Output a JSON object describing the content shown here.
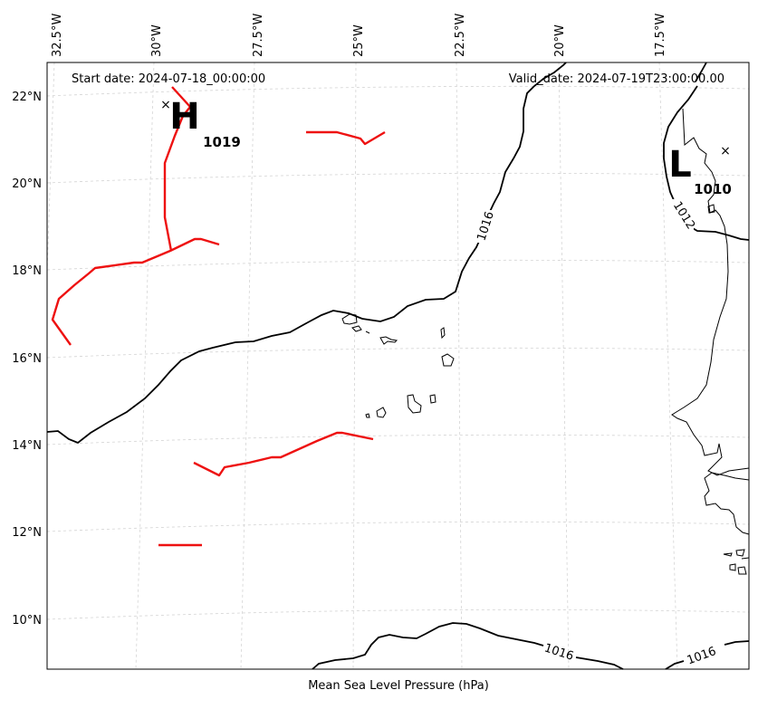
{
  "map": {
    "start_date_text": "Start date: 2024-07-18_00:00:00",
    "valid_date_text": "Valid_date: 2024-07-19T23:00:00.00",
    "xlabel": "Mean Sea Level Pressure (hPa)",
    "lon_labels": [
      "32.5°W",
      "30°W",
      "27.5°W",
      "25°W",
      "22.5°W",
      "20°W",
      "17.5°W"
    ],
    "lat_labels": [
      "22°N",
      "20°N",
      "18°N",
      "16°N",
      "14°N",
      "12°N",
      "10°N"
    ],
    "high_center": {
      "letter": "H",
      "value": "1019"
    },
    "low_center": {
      "letter": "L",
      "value": "1010"
    },
    "contour_labels": [
      "1016",
      "1012",
      "1016",
      "1016"
    ],
    "colors": {
      "background": "#ffffff",
      "isobar": "#000000",
      "front": "#ee1111",
      "gridline": "#cccccc",
      "coastline": "#000000"
    },
    "projection": "lambert-conformal",
    "gridlines": true
  }
}
